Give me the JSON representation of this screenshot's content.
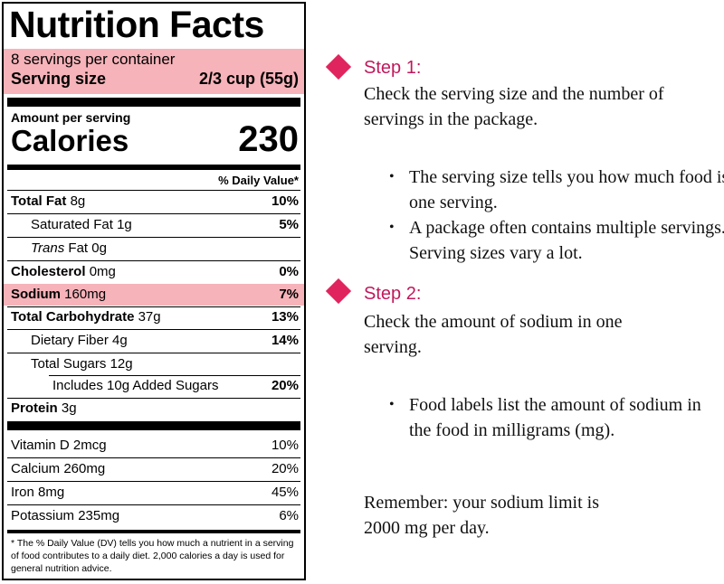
{
  "label": {
    "title": "Nutrition Facts",
    "servings_per_container": "8 servings per container",
    "serving_size_label": "Serving size",
    "serving_size_value": "2/3 cup (55g)",
    "amount_per_serving": "Amount per serving",
    "calories_label": "Calories",
    "calories_value": "230",
    "daily_value_header": "% Daily Value*",
    "nutrients": [
      {
        "name": "Total Fat",
        "amount": "8g",
        "dv": "10%"
      },
      {
        "name": "Saturated Fat",
        "amount": "1g",
        "dv": "5%"
      },
      {
        "name": "Trans",
        "amount": "Fat 0g",
        "dv": ""
      },
      {
        "name": "Cholesterol",
        "amount": "0mg",
        "dv": "0%"
      },
      {
        "name": "Sodium",
        "amount": "160mg",
        "dv": "7%"
      },
      {
        "name": "Total Carbohydrate",
        "amount": "37g",
        "dv": "13%"
      },
      {
        "name": "Dietary Fiber",
        "amount": "4g",
        "dv": "14%"
      },
      {
        "name": "Total Sugars",
        "amount": "12g",
        "dv": ""
      },
      {
        "name": "Includes 10g Added Sugars",
        "amount": "",
        "dv": "20%"
      },
      {
        "name": "Protein",
        "amount": "3g",
        "dv": ""
      }
    ],
    "vitamins": [
      {
        "name": "Vitamin D 2mcg",
        "dv": "10%"
      },
      {
        "name": "Calcium 260mg",
        "dv": "20%"
      },
      {
        "name": "Iron 8mg",
        "dv": "45%"
      },
      {
        "name": "Potassium 235mg",
        "dv": "6%"
      }
    ],
    "footnote": "* The % Daily Value (DV) tells you how much a nutrient in a serving of food contributes to a daily diet. 2,000 calories a day is used for general nutrition advice."
  },
  "steps": {
    "step1_title": "Step 1:",
    "step1_text": "Check the serving size and the number of servings in the package.",
    "step1_bullets": [
      "The serving size tells you how much food is in one serving.",
      "A package often contains multiple servings. Serving sizes vary a lot."
    ],
    "step2_title": "Step 2:",
    "step2_text": "Check the amount of sodium in one serving.",
    "step2_bullets": [
      "Food labels list the amount of sodium in the food in milligrams (mg)."
    ],
    "remember": "Remember: your sodium limit is 2000 mg per day."
  },
  "colors": {
    "highlight": "#f6b3b9",
    "accent": "#e0245e",
    "step_title": "#c1185b"
  }
}
